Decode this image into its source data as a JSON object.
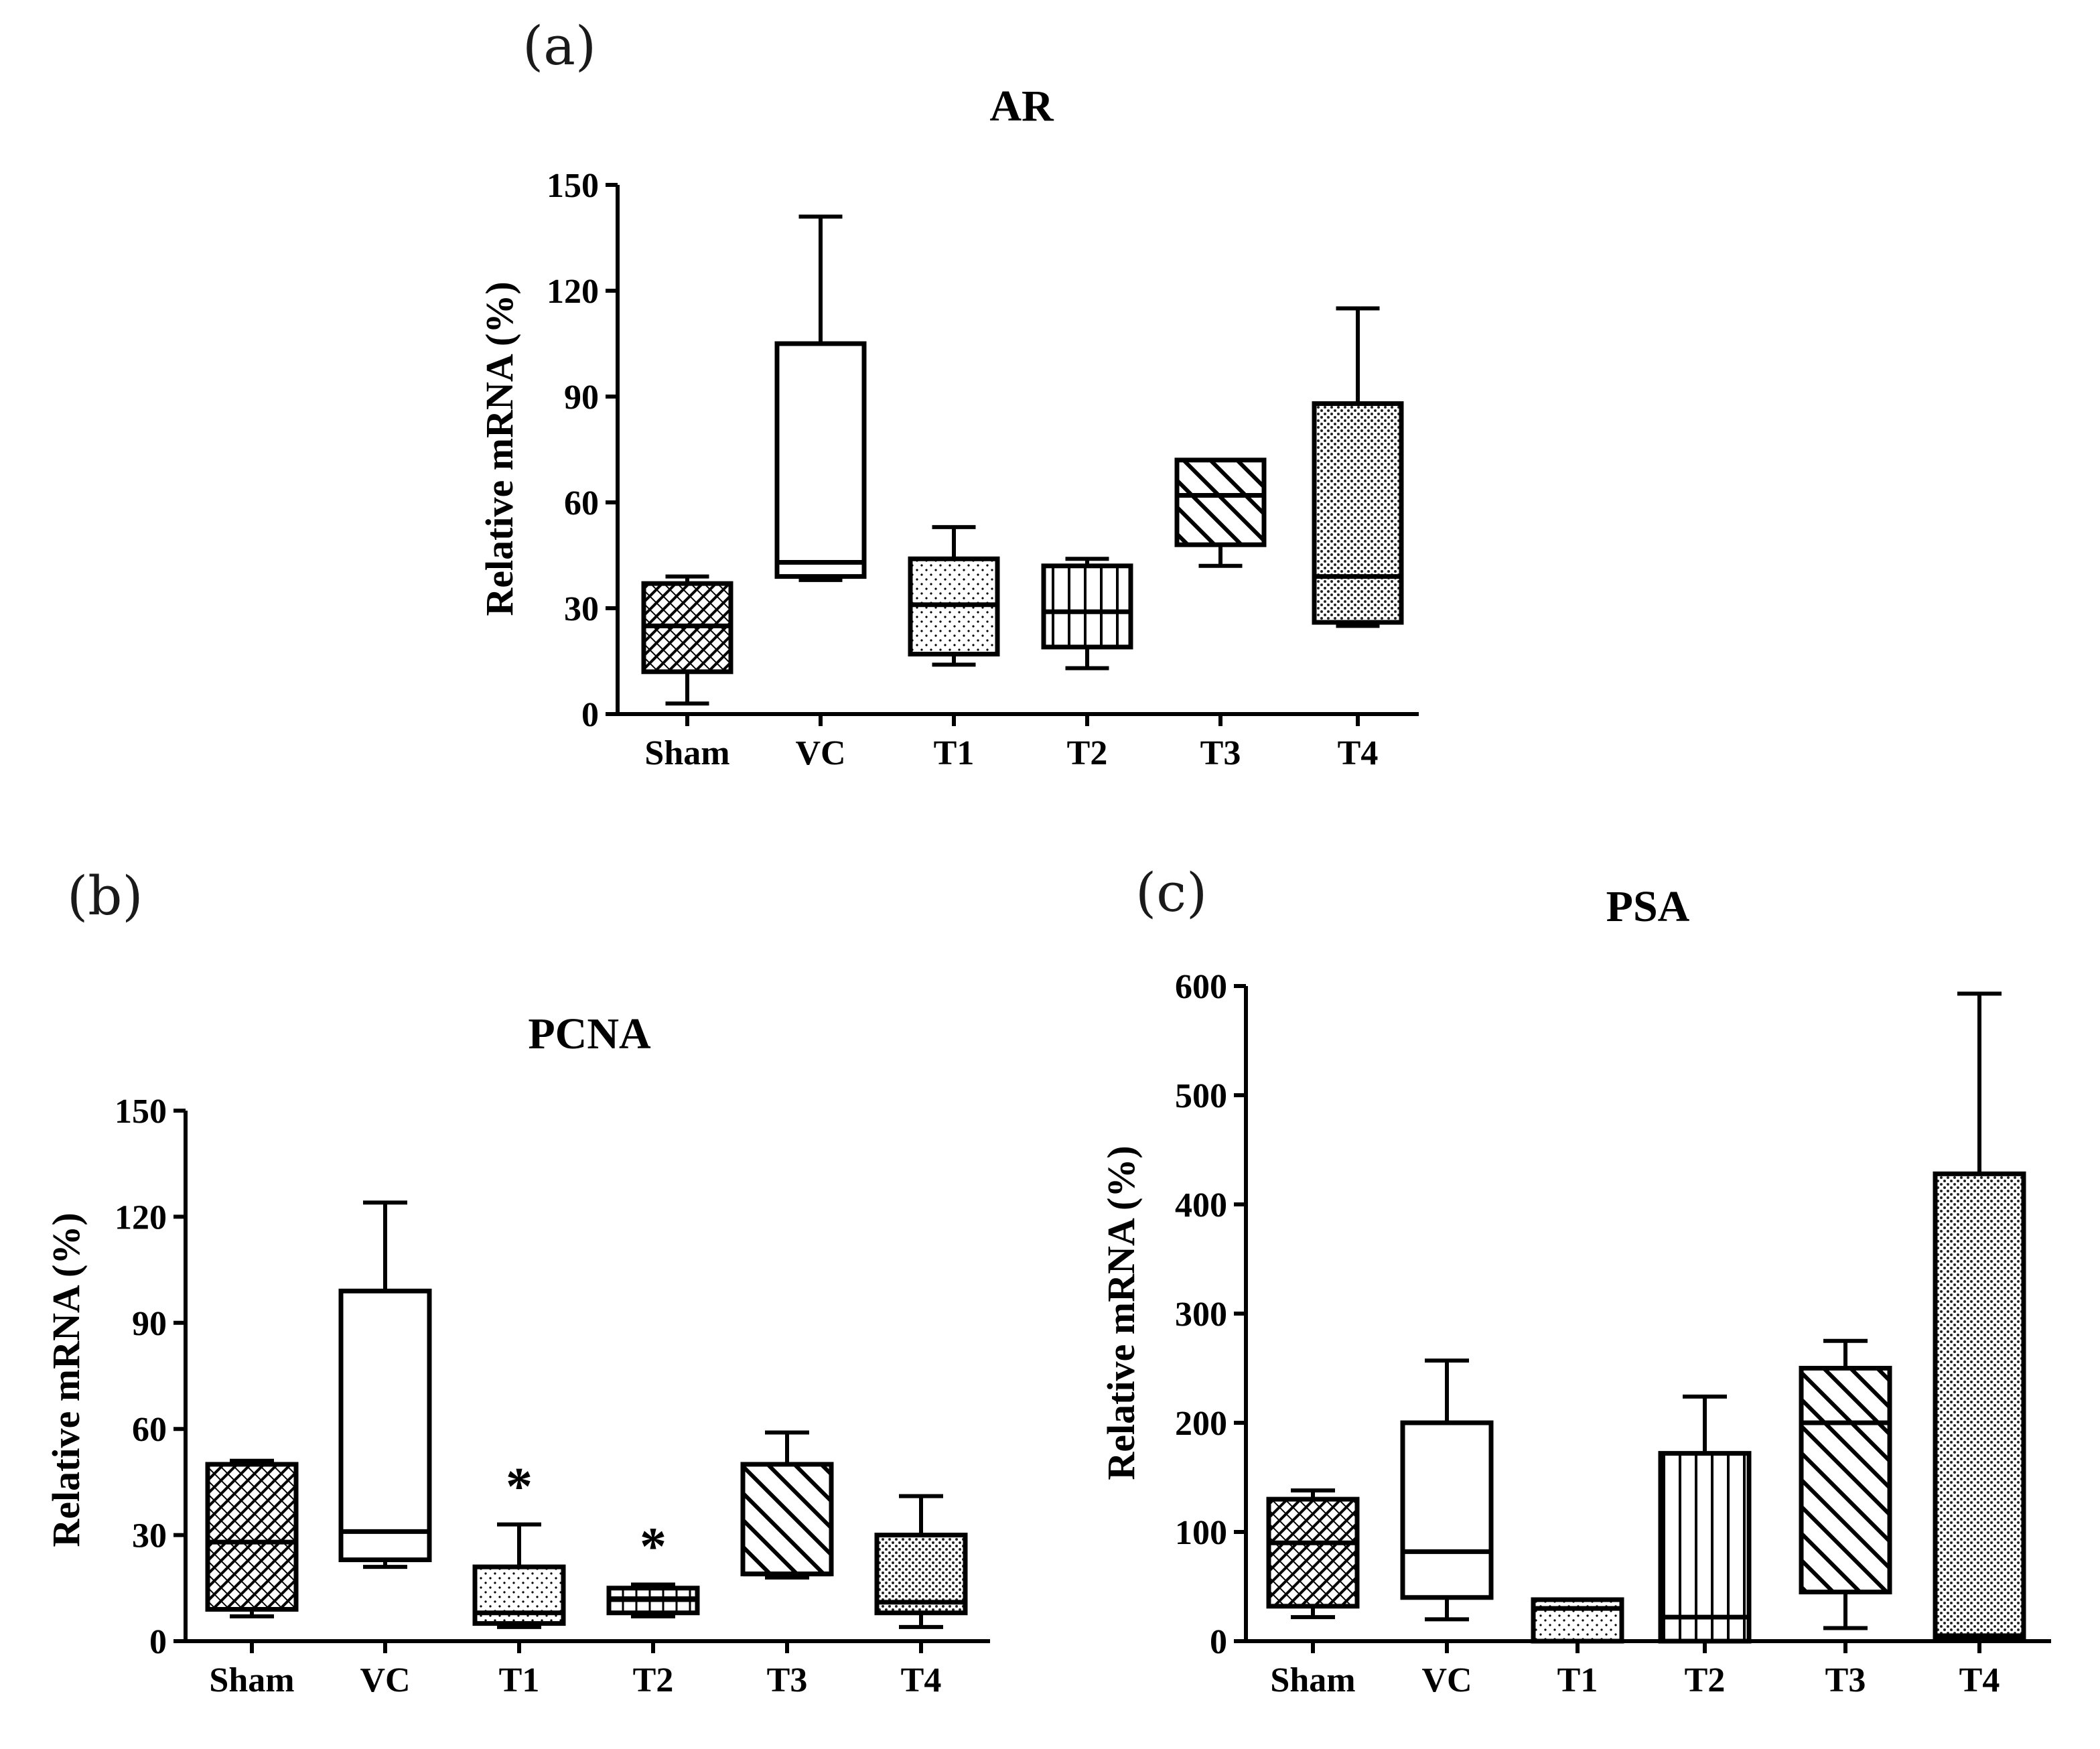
{
  "panels": [
    {
      "label": "(a)"
    },
    {
      "label": "(b)"
    },
    {
      "label": "(c)"
    }
  ],
  "chart_data": [
    {
      "type": "boxplot",
      "title": "AR",
      "ylabel": "Relative mRNA (%)",
      "xlabel": "",
      "ylim": [
        0,
        150
      ],
      "yticks": [
        0,
        30,
        60,
        90,
        120,
        150
      ],
      "categories": [
        "Sham",
        "VC",
        "T1",
        "T2",
        "T3",
        "T4"
      ],
      "fill_patterns": [
        "crosshatch-diagonal",
        "none",
        "dots",
        "vertical-lines",
        "diagonal-stripes",
        "dense-dots"
      ],
      "min": [
        3,
        38,
        14,
        13,
        42,
        25
      ],
      "q1": [
        12,
        39,
        17,
        19,
        48,
        26
      ],
      "median": [
        25,
        43,
        31,
        29,
        62,
        39
      ],
      "q3": [
        37,
        105,
        44,
        42,
        72,
        88
      ],
      "max": [
        39,
        141,
        53,
        44,
        72,
        115
      ],
      "annotations": []
    },
    {
      "type": "boxplot",
      "title": "PCNA",
      "ylabel": "Relative mRNA (%)",
      "xlabel": "",
      "ylim": [
        0,
        150
      ],
      "yticks": [
        0,
        30,
        60,
        90,
        120,
        150
      ],
      "categories": [
        "Sham",
        "VC",
        "T1",
        "T2",
        "T3",
        "T4"
      ],
      "fill_patterns": [
        "crosshatch-diagonal",
        "none",
        "dots",
        "grid",
        "diagonal-stripes",
        "dense-dots"
      ],
      "min": [
        7,
        21,
        4,
        7,
        18,
        4
      ],
      "q1": [
        9,
        23,
        5,
        8,
        19,
        8
      ],
      "median": [
        28,
        31,
        8,
        12,
        19,
        11
      ],
      "q3": [
        50,
        99,
        21,
        15,
        50,
        30
      ],
      "max": [
        51,
        124,
        33,
        16,
        59,
        41
      ],
      "annotations": [
        {
          "category": "T1",
          "text": "*"
        },
        {
          "category": "T2",
          "text": "*"
        }
      ]
    },
    {
      "type": "boxplot",
      "title": "PSA",
      "ylabel": "Relative mRNA (%)",
      "xlabel": "",
      "ylim": [
        0,
        600
      ],
      "yticks": [
        0,
        100,
        200,
        300,
        400,
        500,
        600
      ],
      "categories": [
        "Sham",
        "VC",
        "T1",
        "T2",
        "T3",
        "T4"
      ],
      "fill_patterns": [
        "crosshatch-diagonal",
        "none",
        "dots",
        "vertical-lines",
        "diagonal-stripes",
        "dense-dots"
      ],
      "min": [
        22,
        20,
        0,
        0,
        12,
        0
      ],
      "q1": [
        32,
        40,
        0,
        0,
        45,
        3
      ],
      "median": [
        90,
        82,
        30,
        22,
        200,
        5
      ],
      "q3": [
        130,
        200,
        38,
        172,
        250,
        428
      ],
      "max": [
        138,
        257,
        38,
        224,
        275,
        593
      ],
      "annotations": []
    }
  ]
}
